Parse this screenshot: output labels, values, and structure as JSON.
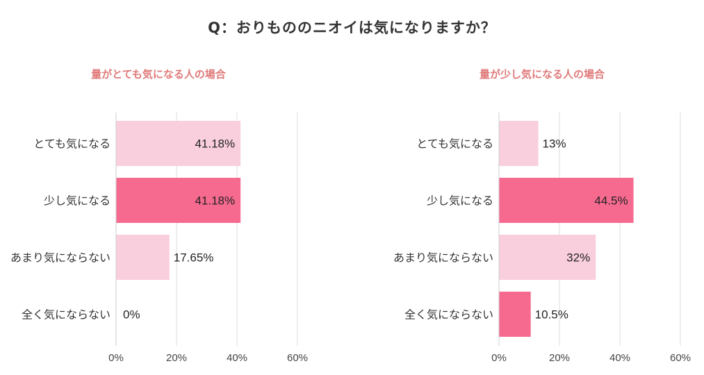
{
  "title": "Q：おりもののニオイは気になりますか？",
  "colors": {
    "light_bar": "#f9cfdd",
    "dark_bar": "#f66a8f",
    "subtitle": "#e07a7a",
    "grid": "#dddddd"
  },
  "chart_data": [
    {
      "type": "bar",
      "orientation": "horizontal",
      "title": "量がとても気になる人の場合",
      "categories": [
        "とても気になる",
        "少し気になる",
        "あまり気にならない",
        "全く気にならない"
      ],
      "values": [
        41.18,
        41.18,
        17.65,
        0
      ],
      "value_labels": [
        "41.18%",
        "41.18%",
        "17.65%",
        "0%"
      ],
      "highlight": [
        false,
        true,
        false,
        false
      ],
      "xlim": [
        0,
        60
      ],
      "xticks": [
        "0%",
        "20%",
        "40%",
        "60%"
      ],
      "grid": true
    },
    {
      "type": "bar",
      "orientation": "horizontal",
      "title": "量が少し気になる人の場合",
      "categories": [
        "とても気になる",
        "少し気になる",
        "あまり気にならない",
        "全く気にならない"
      ],
      "values": [
        13,
        44.5,
        32,
        10.5
      ],
      "value_labels": [
        "13%",
        "44.5%",
        "32%",
        "10.5%"
      ],
      "highlight": [
        false,
        true,
        false,
        true
      ],
      "xlim": [
        0,
        60
      ],
      "xticks": [
        "0%",
        "20%",
        "40%",
        "60%"
      ],
      "grid": true
    }
  ]
}
